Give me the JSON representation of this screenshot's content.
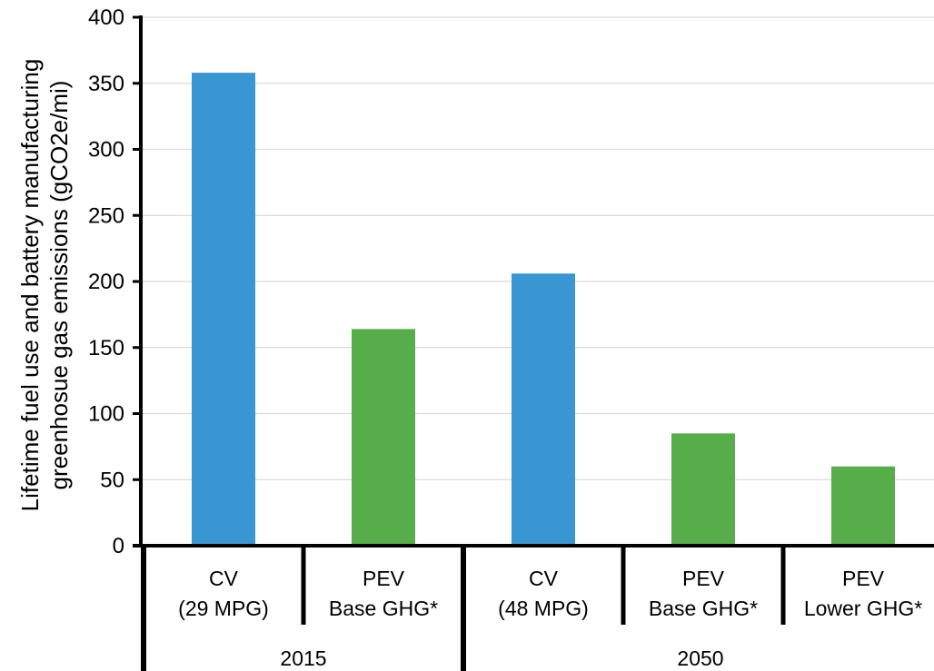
{
  "chart_data": {
    "type": "bar",
    "ylabel_line1": "Lifetime fuel use and battery manufacturing",
    "ylabel_line2": "greenhosue gas emissions (gCO2e/mi)",
    "ylim": [
      0,
      400
    ],
    "yticks": [
      "0",
      "50",
      "100",
      "150",
      "200",
      "250",
      "300",
      "350",
      "400"
    ],
    "grid": true,
    "bars": [
      {
        "line1": "CV",
        "line2": "(29 MPG)",
        "value": 358,
        "color": "#3a96d2"
      },
      {
        "line1": "PEV",
        "line2": "Base GHG*",
        "value": 164,
        "color": "#58ad4b"
      },
      {
        "line1": "CV",
        "line2": "(48 MPG)",
        "value": 206,
        "color": "#3a96d2"
      },
      {
        "line1": "PEV",
        "line2": "Base GHG*",
        "value": 85,
        "color": "#58ad4b"
      },
      {
        "line1": "PEV",
        "line2": "Lower GHG*",
        "value": 60,
        "color": "#58ad4b"
      }
    ],
    "groups": [
      {
        "label": "2015",
        "count": 2
      },
      {
        "label": "2050",
        "count": 3
      }
    ]
  }
}
